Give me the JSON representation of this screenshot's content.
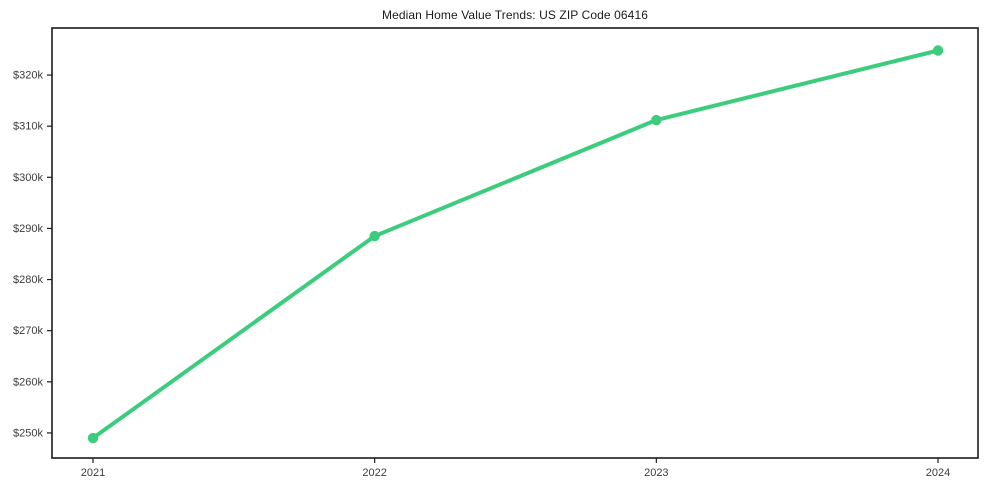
{
  "page": {
    "title": "Median Home Value Trends: US ZIP Code 06416"
  },
  "chart_data": {
    "type": "line",
    "title": "Median Home Value Trends: US ZIP Code 06416",
    "x": [
      2021,
      2022,
      2023,
      2024
    ],
    "x_tick_labels": [
      "2021",
      "2022",
      "2023",
      "2024"
    ],
    "series": [
      {
        "name": "Median Home Value",
        "values": [
          249000,
          288500,
          311200,
          324800
        ]
      }
    ],
    "y_ticks": [
      250000,
      260000,
      270000,
      280000,
      290000,
      300000,
      310000,
      320000
    ],
    "y_tick_labels": [
      "$250k",
      "$260k",
      "$270k",
      "$280k",
      "$290k",
      "$300k",
      "$310k",
      "$320k"
    ],
    "ylim": [
      245100,
      329200
    ],
    "xlabel": "",
    "ylabel": "",
    "grid": false,
    "legend": "none",
    "line_width": 4,
    "marker_radius": 5.2,
    "colors": {
      "line": "#3bcd7c",
      "marker": "#3bcd7c",
      "axis": "#1c1c1c",
      "tick_label": "#3d3d3d",
      "background": "#ffffff"
    }
  }
}
